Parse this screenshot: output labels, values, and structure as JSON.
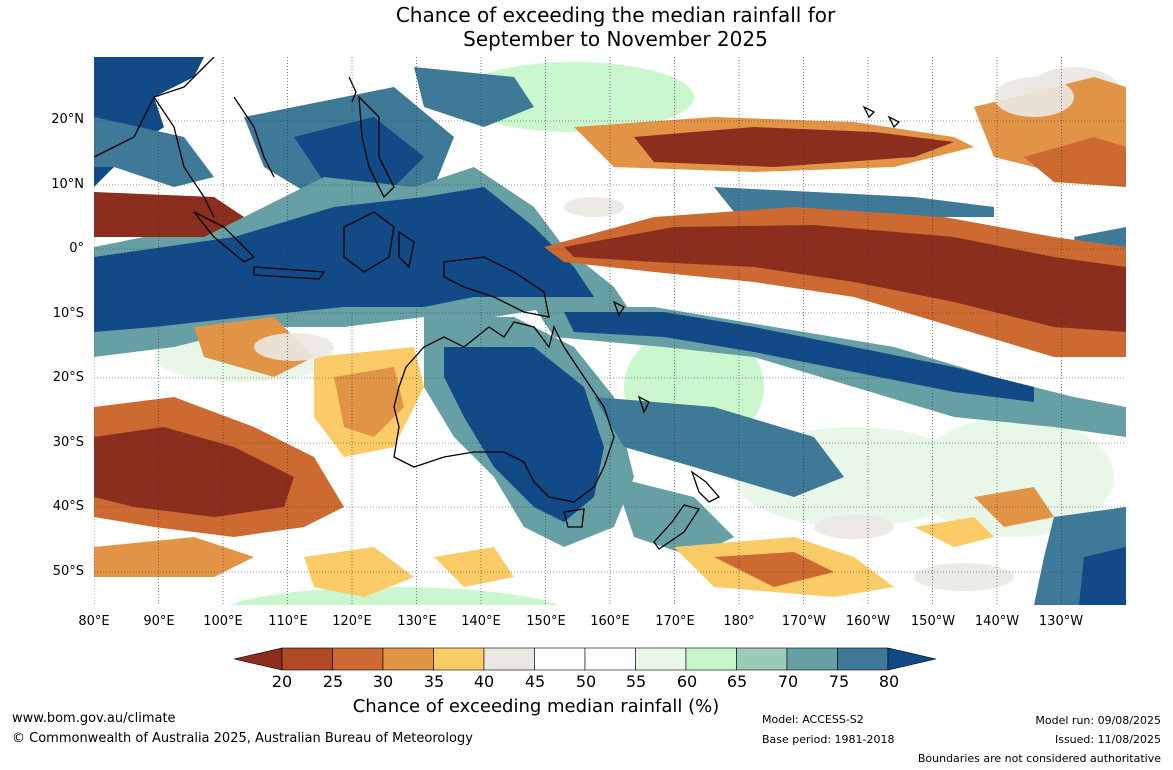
{
  "title": {
    "line1": "Chance of exceeding the median rainfall for",
    "line2": "September to November 2025"
  },
  "axes": {
    "lat_labels": [
      "20°N",
      "10°N",
      "0°",
      "10°S",
      "20°S",
      "30°S",
      "40°S",
      "50°S"
    ],
    "lon_labels": [
      "80°E",
      "90°E",
      "100°E",
      "110°E",
      "120°E",
      "130°E",
      "140°E",
      "150°E",
      "160°E",
      "170°E",
      "180°",
      "170°W",
      "160°W",
      "150°W",
      "140°W",
      "130°W"
    ]
  },
  "legend": {
    "title": "Chance of exceeding median rainfall (%)",
    "ticks": [
      "20",
      "25",
      "30",
      "35",
      "40",
      "45",
      "50",
      "55",
      "60",
      "65",
      "70",
      "75",
      "80"
    ],
    "colors": [
      "#8b2e1e",
      "#b04a26",
      "#cd6a32",
      "#e29446",
      "#fbcb68",
      "#ebe8e3",
      "#ffffff",
      "#ffffff",
      "#e8f7e8",
      "#c8f7cc",
      "#99cbb7",
      "#67a0a4",
      "#3e7a97",
      "#114a86"
    ]
  },
  "footer": {
    "url": "www.bom.gov.au/climate",
    "copyright": "© Commonwealth of Australia 2025, Australian Bureau of Meteorology",
    "model": "Model: ACCESS-S2",
    "base_period": "Base period: 1981-2018",
    "model_run": "Model run: 09/08/2025",
    "issued": "Issued: 11/08/2025",
    "disclaimer": "Boundaries are not considered authoritative"
  }
}
